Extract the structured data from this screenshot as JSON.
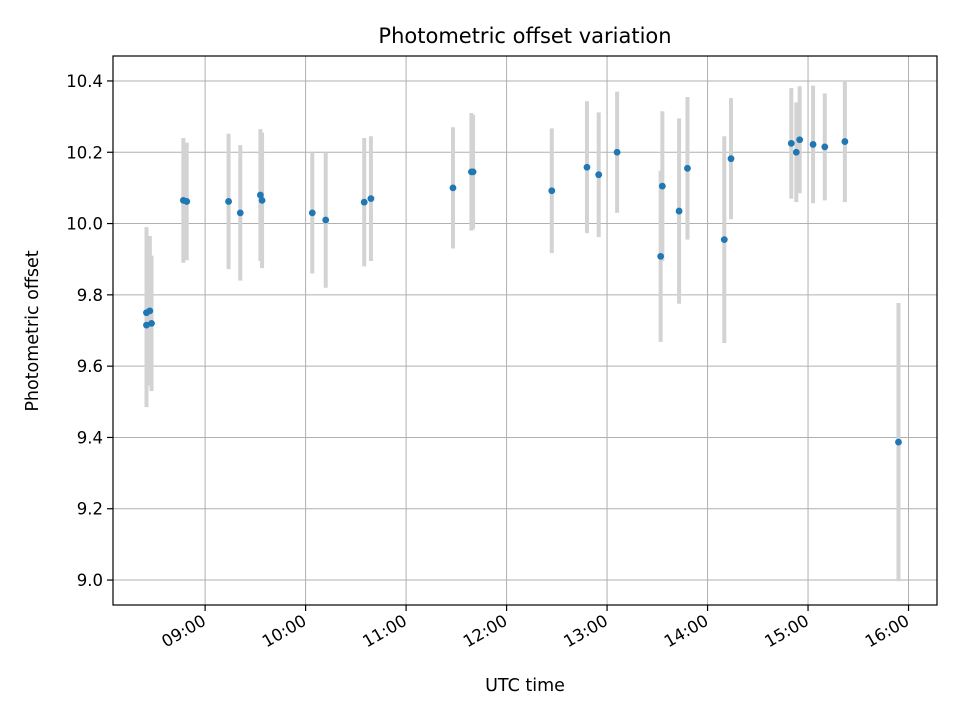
{
  "chart_data": {
    "type": "scatter",
    "title": "Photometric offset variation",
    "xlabel": "UTC time",
    "ylabel": "Photometric offset",
    "x_axis_type": "time",
    "x_tick_values": [
      "09:00",
      "10:00",
      "11:00",
      "12:00",
      "13:00",
      "14:00",
      "15:00",
      "16:00"
    ],
    "x_tick_labels": [
      "09:00",
      "10:00",
      "11:00",
      "12:00",
      "13:00",
      "14:00",
      "15:00",
      "16:00"
    ],
    "xlim": [
      "08:05",
      "16:17"
    ],
    "ylim": [
      8.93,
      10.47
    ],
    "y_ticks": [
      9.0,
      9.2,
      9.4,
      9.6,
      9.8,
      10.0,
      10.2,
      10.4
    ],
    "y_tick_labels": [
      "9.0",
      "9.2",
      "9.4",
      "9.6",
      "9.8",
      "10.0",
      "10.2",
      "10.4"
    ],
    "grid": true,
    "point_color": "#1f77b4",
    "errorbar_color": "#d3d3d3",
    "points": [
      {
        "x": "08:25",
        "y": 9.75,
        "err": 0.24
      },
      {
        "x": "08:25",
        "y": 9.715,
        "err": 0.23
      },
      {
        "x": "08:27",
        "y": 9.755,
        "err": 0.21
      },
      {
        "x": "08:28",
        "y": 9.72,
        "err": 0.19
      },
      {
        "x": "08:47",
        "y": 10.065,
        "err": 0.175
      },
      {
        "x": "08:49",
        "y": 10.062,
        "err": 0.165
      },
      {
        "x": "09:14",
        "y": 10.062,
        "err": 0.19
      },
      {
        "x": "09:21",
        "y": 10.03,
        "err": 0.19
      },
      {
        "x": "09:33",
        "y": 10.08,
        "err": 0.185
      },
      {
        "x": "09:34",
        "y": 10.065,
        "err": 0.19
      },
      {
        "x": "10:04",
        "y": 10.03,
        "err": 0.17
      },
      {
        "x": "10:12",
        "y": 10.01,
        "err": 0.19
      },
      {
        "x": "10:35",
        "y": 10.06,
        "err": 0.18
      },
      {
        "x": "10:39",
        "y": 10.07,
        "err": 0.175
      },
      {
        "x": "11:28",
        "y": 10.1,
        "err": 0.17
      },
      {
        "x": "11:39",
        "y": 10.145,
        "err": 0.165
      },
      {
        "x": "11:40",
        "y": 10.145,
        "err": 0.16
      },
      {
        "x": "12:27",
        "y": 10.092,
        "err": 0.175
      },
      {
        "x": "12:48",
        "y": 10.158,
        "err": 0.185
      },
      {
        "x": "12:55",
        "y": 10.137,
        "err": 0.175
      },
      {
        "x": "13:06",
        "y": 10.2,
        "err": 0.17
      },
      {
        "x": "13:32",
        "y": 9.908,
        "err": 0.24
      },
      {
        "x": "13:33",
        "y": 10.105,
        "err": 0.21
      },
      {
        "x": "13:43",
        "y": 10.035,
        "err": 0.26
      },
      {
        "x": "13:48",
        "y": 10.155,
        "err": 0.2
      },
      {
        "x": "14:10",
        "y": 9.955,
        "err": 0.29
      },
      {
        "x": "14:14",
        "y": 10.182,
        "err": 0.17
      },
      {
        "x": "14:50",
        "y": 10.225,
        "err": 0.155
      },
      {
        "x": "14:53",
        "y": 10.2,
        "err": 0.14
      },
      {
        "x": "14:55",
        "y": 10.235,
        "err": 0.15
      },
      {
        "x": "15:03",
        "y": 10.222,
        "err": 0.165
      },
      {
        "x": "15:10",
        "y": 10.215,
        "err": 0.15
      },
      {
        "x": "15:22",
        "y": 10.23,
        "err": 0.17
      },
      {
        "x": "15:54",
        "y": 9.387,
        "err": 0.39
      }
    ]
  }
}
